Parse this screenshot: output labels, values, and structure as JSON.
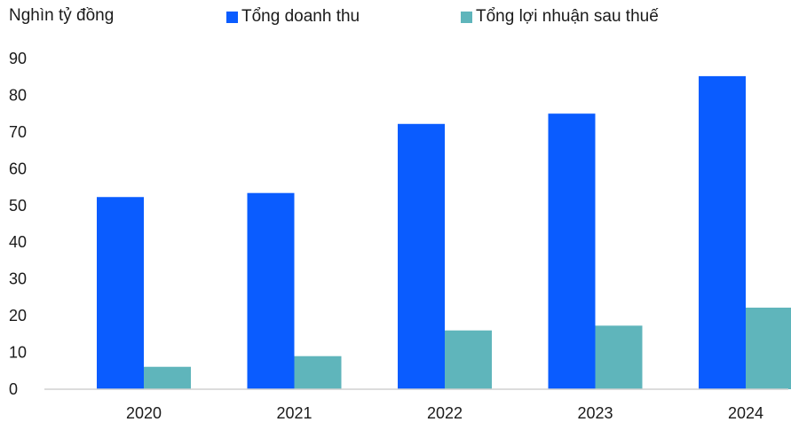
{
  "chart_data": {
    "type": "bar",
    "title": "",
    "ylabel": "Nghìn tỷ đồng",
    "xlabel": "",
    "categories": [
      "2020",
      "2021",
      "2022",
      "2023",
      "2024"
    ],
    "series": [
      {
        "name": "Tổng doanh thu",
        "color": "#0a5cff",
        "values": [
          52.3,
          53.4,
          72.2,
          75.0,
          85.2
        ]
      },
      {
        "name": "Tổng lợi nhuận sau thuế",
        "color": "#5fb5bb",
        "values": [
          6.1,
          9.0,
          16.0,
          17.3,
          22.2
        ]
      }
    ],
    "ylim": [
      0,
      90
    ],
    "yticks": [
      0,
      10,
      20,
      30,
      40,
      50,
      60,
      70,
      80,
      90
    ],
    "grid": false,
    "legend_position": "top"
  }
}
